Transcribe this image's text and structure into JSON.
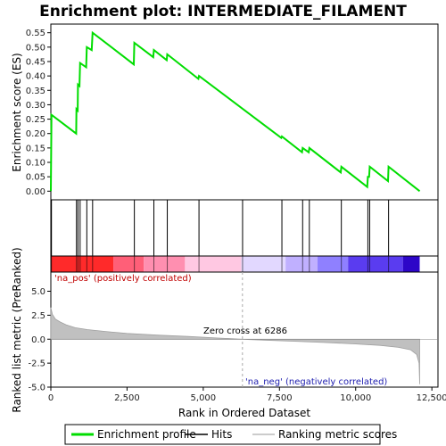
{
  "chart_data": {
    "type": "line",
    "title": "Enrichment plot: INTERMEDIATE_FILAMENT",
    "xlabel": "Rank in Ordered Dataset",
    "ylabel_top": "Enrichment score (ES)",
    "ylabel_bottom": "Ranked list metric (PreRanked)",
    "x_ticks": [
      0,
      2500,
      5000,
      7500,
      10000,
      12500
    ],
    "x_tick_labels": [
      "0",
      "2,500",
      "5,000",
      "7,500",
      "10,000",
      "12,500"
    ],
    "xlim": [
      0,
      12700
    ],
    "es_ylim": [
      -0.03,
      0.58
    ],
    "es_ticks": [
      0.0,
      0.05,
      0.1,
      0.15,
      0.2,
      0.25,
      0.3,
      0.35,
      0.4,
      0.45,
      0.5,
      0.55
    ],
    "es_tick_labels": [
      "0.00",
      "0.05",
      "0.10",
      "0.15",
      "0.20",
      "0.25",
      "0.30",
      "0.35",
      "0.40",
      "0.45",
      "0.50",
      "0.55"
    ],
    "metric_ylim": [
      -5,
      7
    ],
    "metric_ticks": [
      -5.0,
      -2.5,
      0.0,
      2.5,
      5.0
    ],
    "metric_tick_labels": [
      "-5.0",
      "-2.5",
      "0.0",
      "2.5",
      "5.0"
    ],
    "es_profile": [
      [
        0,
        0.0
      ],
      [
        20,
        0.265
      ],
      [
        830,
        0.2
      ],
      [
        840,
        0.285
      ],
      [
        880,
        0.28
      ],
      [
        890,
        0.37
      ],
      [
        940,
        0.365
      ],
      [
        960,
        0.445
      ],
      [
        1160,
        0.43
      ],
      [
        1180,
        0.5
      ],
      [
        1340,
        0.49
      ],
      [
        1370,
        0.55
      ],
      [
        2720,
        0.44
      ],
      [
        2740,
        0.515
      ],
      [
        3360,
        0.465
      ],
      [
        3380,
        0.49
      ],
      [
        3800,
        0.455
      ],
      [
        3820,
        0.475
      ],
      [
        4840,
        0.39
      ],
      [
        4860,
        0.4
      ],
      [
        7560,
        0.185
      ],
      [
        7580,
        0.19
      ],
      [
        8240,
        0.135
      ],
      [
        8260,
        0.15
      ],
      [
        8460,
        0.135
      ],
      [
        8480,
        0.15
      ],
      [
        9510,
        0.065
      ],
      [
        9530,
        0.085
      ],
      [
        10380,
        0.015
      ],
      [
        10400,
        0.05
      ],
      [
        10440,
        0.05
      ],
      [
        10460,
        0.085
      ],
      [
        11060,
        0.035
      ],
      [
        11080,
        0.085
      ],
      [
        12100,
        0.0
      ]
    ],
    "hits": [
      20,
      840,
      890,
      960,
      1180,
      1370,
      2740,
      3380,
      3820,
      4860,
      6290,
      7580,
      8260,
      8480,
      9530,
      10400,
      10460,
      11080
    ],
    "metric_curve": [
      [
        0,
        3.3
      ],
      [
        50,
        2.6
      ],
      [
        150,
        2.1
      ],
      [
        300,
        1.8
      ],
      [
        500,
        1.5
      ],
      [
        800,
        1.2
      ],
      [
        1200,
        1.0
      ],
      [
        1800,
        0.8
      ],
      [
        2500,
        0.6
      ],
      [
        3500,
        0.42
      ],
      [
        4500,
        0.28
      ],
      [
        5500,
        0.12
      ],
      [
        6286,
        0.0
      ],
      [
        7000,
        -0.1
      ],
      [
        8000,
        -0.22
      ],
      [
        9000,
        -0.35
      ],
      [
        10000,
        -0.5
      ],
      [
        10800,
        -0.65
      ],
      [
        11400,
        -0.85
      ],
      [
        11800,
        -1.1
      ],
      [
        12000,
        -1.6
      ],
      [
        12080,
        -2.5
      ],
      [
        12100,
        -4.7
      ]
    ],
    "zero_cross_label": "Zero cross at 6286",
    "zero_cross": 6286,
    "pos_label": "'na_pos' (positively correlated)",
    "neg_label": "'na_neg' (negatively correlated)",
    "n_genes": 12100,
    "color_bands": [
      {
        "from": 0,
        "to": 2050,
        "color": "#ff2a2a"
      },
      {
        "from": 2050,
        "to": 3050,
        "color": "#ff5f78"
      },
      {
        "from": 3050,
        "to": 4400,
        "color": "#ff8fb0"
      },
      {
        "from": 4400,
        "to": 6250,
        "color": "#ffc8e2"
      },
      {
        "from": 6250,
        "to": 7700,
        "color": "#e2d8ff"
      },
      {
        "from": 7700,
        "to": 8750,
        "color": "#c0b0ff"
      },
      {
        "from": 8750,
        "to": 9750,
        "color": "#8f80ff"
      },
      {
        "from": 9750,
        "to": 11550,
        "color": "#5a3cf0"
      },
      {
        "from": 11550,
        "to": 12100,
        "color": "#2d06c8"
      }
    ],
    "legend": [
      {
        "label": "Enrichment profile",
        "color": "#00dd00"
      },
      {
        "label": "Hits",
        "color": "#000000"
      },
      {
        "label": "Ranking metric scores",
        "color": "#bbbbbb"
      }
    ]
  }
}
